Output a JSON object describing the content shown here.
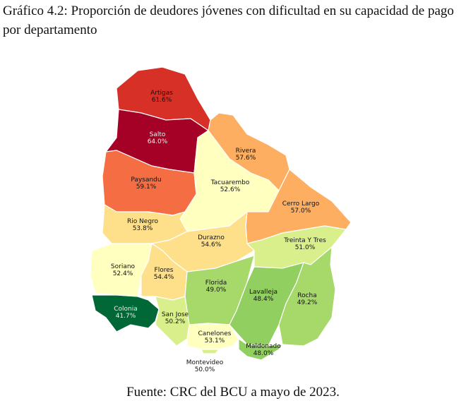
{
  "chart_data": {
    "type": "choropleth",
    "title": "Gráfico 4.2: Proporción de deudores jóvenes con dificultad en su capacidad de pago por departamento",
    "source": "Fuente: CRC del BCU a mayo de 2023.",
    "categories": [
      "Artigas",
      "Salto",
      "Paysandu",
      "Rivera",
      "Tacuarembo",
      "Cerro Largo",
      "Rio Negro",
      "Durazno",
      "Treinta Y Tres",
      "Soriano",
      "Flores",
      "Florida",
      "Lavalleja",
      "Rocha",
      "Colonia",
      "San Jose",
      "Canelones",
      "Maldonado",
      "Montevideo"
    ],
    "values": [
      61.6,
      64.0,
      59.1,
      57.6,
      52.6,
      57.0,
      53.8,
      54.6,
      51.0,
      52.4,
      54.4,
      49.0,
      48.4,
      49.2,
      41.7,
      50.2,
      53.1,
      48.0,
      50.0
    ],
    "value_labels": [
      "61.6%",
      "64.0%",
      "59.1%",
      "57.6%",
      "52.6%",
      "57.0%",
      "53.8%",
      "54.6%",
      "51.0%",
      "52.4%",
      "54.4%",
      "49.0%",
      "48.4%",
      "49.2%",
      "41.7%",
      "50.2%",
      "53.1%",
      "48.0%",
      "50.0%"
    ],
    "colors": [
      "#d73027",
      "#a50026",
      "#f46d43",
      "#fdae61",
      "#ffffbf",
      "#fdae61",
      "#fee08b",
      "#fee08b",
      "#d9ef8b",
      "#ffffbf",
      "#fee08b",
      "#a6d96a",
      "#91cf60",
      "#a6d96a",
      "#006837",
      "#d9ef8b",
      "#ffffbf",
      "#91cf60",
      "#d9ef8b"
    ]
  }
}
